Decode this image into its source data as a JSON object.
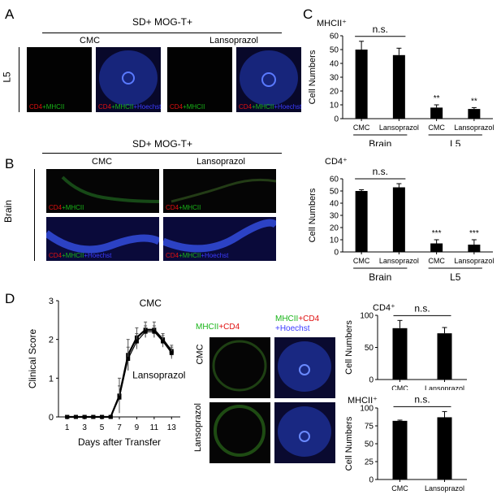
{
  "panels": {
    "A": "A",
    "B": "B",
    "C": "C",
    "D": "D"
  },
  "panelA": {
    "header": "SD+ MOG-T+",
    "groups": [
      "CMC",
      "Lansoprazol"
    ],
    "row_label": "L5",
    "stain1": {
      "a": "CD4",
      "b": "+MHCII"
    },
    "stain2": {
      "a": "CD4",
      "b": "+MHCII",
      "c": "+Hoechst"
    }
  },
  "panelB": {
    "header": "SD+ MOG-T+",
    "groups": [
      "CMC",
      "Lansoprazol"
    ],
    "row_label": "Brain",
    "stain1": {
      "a": "CD4",
      "b": "+MHCII"
    },
    "stain2": {
      "a": "CD4",
      "b": "+MHCII",
      "c": "+Hoechst"
    }
  },
  "panelD_micro": {
    "col1": {
      "a": "MHCII",
      "b": "+CD4"
    },
    "col2": {
      "a": "MHCII",
      "b": "+CD4",
      "c": "+Hoechst"
    },
    "rows": [
      "CMC",
      "Lansoprazol"
    ]
  },
  "chart_data": [
    {
      "id": "C-top",
      "type": "bar",
      "title": "MHCII⁺",
      "ylabel": "Cell Numbers",
      "ylim": [
        0,
        60
      ],
      "yticks": [
        0,
        10,
        20,
        30,
        40,
        50,
        60
      ],
      "categories": [
        "CMC",
        "Lansoprazol",
        "CMC",
        "Lansoprazol"
      ],
      "groups": [
        "Brain",
        "L5"
      ],
      "values": [
        50,
        46,
        8,
        7
      ],
      "errors": [
        6,
        5,
        2,
        1
      ],
      "annotations": [
        {
          "text": "n.s.",
          "between": [
            0,
            1
          ]
        },
        {
          "text": "**",
          "bar": 2
        },
        {
          "text": "**",
          "bar": 3
        }
      ]
    },
    {
      "id": "C-bottom",
      "type": "bar",
      "title": "CD4⁺",
      "ylabel": "Cell Numbers",
      "ylim": [
        0,
        60
      ],
      "yticks": [
        0,
        10,
        20,
        30,
        40,
        50,
        60
      ],
      "categories": [
        "CMC",
        "Lansoprazol",
        "CMC",
        "Lansoprazol"
      ],
      "groups": [
        "Brain",
        "L5"
      ],
      "values": [
        50,
        53,
        7,
        6
      ],
      "errors": [
        1,
        3,
        3,
        4
      ],
      "annotations": [
        {
          "text": "n.s.",
          "between": [
            0,
            1
          ]
        },
        {
          "text": "***",
          "bar": 2
        },
        {
          "text": "***",
          "bar": 3
        }
      ]
    },
    {
      "id": "D-line",
      "type": "line",
      "xlabel": "Days after Transfer",
      "ylabel": "Clinical Score",
      "xlim": [
        0,
        14
      ],
      "ylim": [
        0,
        3
      ],
      "xticks": [
        1,
        3,
        5,
        7,
        9,
        11,
        13
      ],
      "yticks": [
        0,
        1,
        2,
        3
      ],
      "series": [
        {
          "name": "CMC",
          "x": [
            1,
            2,
            3,
            4,
            5,
            6,
            7,
            8,
            9,
            10,
            11,
            12,
            13
          ],
          "y": [
            0,
            0,
            0,
            0,
            0,
            0,
            0.55,
            1.6,
            2.05,
            2.25,
            2.25,
            2.0,
            1.7
          ],
          "err": [
            0,
            0,
            0,
            0,
            0,
            0,
            0.45,
            0.4,
            0.25,
            0.2,
            0.2,
            0.15,
            0.15
          ]
        },
        {
          "name": "Lansoprazol",
          "x": [
            1,
            2,
            3,
            4,
            5,
            6,
            7,
            8,
            9,
            10,
            11,
            12,
            13
          ],
          "y": [
            0,
            0,
            0,
            0,
            0,
            0,
            0.5,
            1.5,
            1.95,
            2.2,
            2.2,
            1.95,
            1.65
          ],
          "err": [
            0,
            0,
            0,
            0,
            0,
            0,
            0.3,
            0.3,
            0.2,
            0.15,
            0.15,
            0.15,
            0.15
          ]
        }
      ]
    },
    {
      "id": "D-cd4",
      "type": "bar",
      "title": "CD4⁺",
      "ylabel": "Cell Numbers",
      "ylim": [
        0,
        100
      ],
      "yticks": [
        0,
        50,
        100
      ],
      "categories": [
        "CMC",
        "Lansoprazol"
      ],
      "values": [
        80,
        72
      ],
      "errors": [
        12,
        9
      ],
      "annotations": [
        {
          "text": "n.s.",
          "between": [
            0,
            1
          ]
        }
      ]
    },
    {
      "id": "D-mhc",
      "type": "bar",
      "title": "MHCII⁺",
      "ylabel": "Cell Numbers",
      "ylim": [
        0,
        100
      ],
      "yticks": [
        0,
        25,
        50,
        75,
        100
      ],
      "categories": [
        "CMC",
        "Lansoprazol"
      ],
      "values": [
        82,
        87
      ],
      "errors": [
        1,
        8
      ],
      "annotations": [
        {
          "text": "n.s.",
          "between": [
            0,
            1
          ]
        }
      ]
    }
  ]
}
